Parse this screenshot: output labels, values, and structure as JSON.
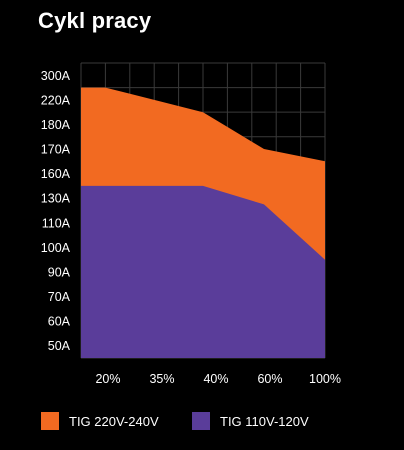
{
  "title": "Cykl pracy",
  "colors": {
    "background": "#000000",
    "orange": "#f26a21",
    "purple": "#5a3d9a",
    "grid": "#3a3a3a"
  },
  "chart_data": {
    "type": "area",
    "title": "Cykl pracy",
    "categories": [
      "20%",
      "35%",
      "40%",
      "60%",
      "100%"
    ],
    "y_tick_labels": [
      "300A",
      "220A",
      "180A",
      "170A",
      "160A",
      "130A",
      "110A",
      "100A",
      "90A",
      "70A",
      "60A",
      "50A"
    ],
    "x": [
      10,
      20,
      35,
      40,
      60,
      100
    ],
    "series": [
      {
        "name": "TIG 220V-240V",
        "color": "#f26a21",
        "values": [
          220,
          220,
          200,
          180,
          165,
          160
        ]
      },
      {
        "name": "TIG 110V-120V",
        "color": "#5a3d9a",
        "values": [
          130,
          130,
          130,
          130,
          115,
          90
        ]
      }
    ],
    "grid": true,
    "legend": "bottom"
  }
}
